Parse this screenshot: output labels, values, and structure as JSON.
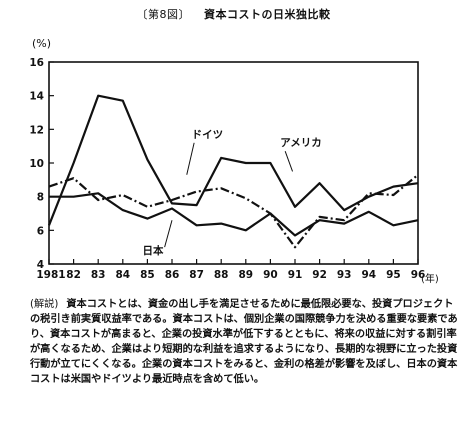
{
  "figure": {
    "label": "〔第8図〕",
    "title": "資本コストの日米独比較"
  },
  "chart_data": {
    "type": "line",
    "x": [
      1981,
      1982,
      1983,
      1984,
      1985,
      1986,
      1987,
      1988,
      1989,
      1990,
      1991,
      1992,
      1993,
      1994,
      1995,
      1996
    ],
    "x_tick_labels": [
      "1981",
      "82",
      "83",
      "84",
      "85",
      "86",
      "87",
      "88",
      "89",
      "90",
      "91",
      "92",
      "93",
      "94",
      "95",
      "96"
    ],
    "x_unit": "(年)",
    "y_unit": "(%)",
    "ylim": [
      4,
      16
    ],
    "y_ticks": [
      4,
      6,
      8,
      10,
      12,
      14,
      16
    ],
    "grid": false,
    "series": [
      {
        "name": "ドイツ",
        "style": "solid",
        "values": [
          6.3,
          10.0,
          14.0,
          13.7,
          10.2,
          7.6,
          7.5,
          10.3,
          10.0,
          10.0,
          7.4,
          8.8,
          7.2,
          8.0,
          8.6,
          8.8
        ]
      },
      {
        "name": "アメリカ",
        "style": "dashdot",
        "values": [
          8.6,
          9.1,
          7.8,
          8.1,
          7.4,
          7.8,
          8.3,
          8.5,
          7.9,
          7.0,
          5.0,
          6.8,
          6.6,
          8.2,
          8.1,
          9.3
        ]
      },
      {
        "name": "日本",
        "style": "solid",
        "values": [
          8.0,
          8.0,
          8.2,
          7.2,
          6.7,
          7.3,
          6.3,
          6.4,
          6.0,
          7.0,
          5.7,
          6.6,
          6.4,
          7.1,
          6.3,
          6.6
        ]
      }
    ]
  },
  "note": {
    "tag": "(解説)",
    "text": "資本コストとは、資金の出し手を満足させるために最低限必要な、投資プロジェクトの税引き前実質収益率である。資本コストは、個別企業の国際競争力を決める重要な要素であり、資本コストが高まると、企業の投資水準が低下するとともに、将来の収益に対する割引率が高くなるため、企業はより短期的な利益を追求するようになり、長期的な視野に立った投資行動が立てにくくなる。企業の資本コストをみると、金利の格差が影響を及ぼし、日本の資本コストは米国やドイツより最近時点を含めて低い。"
  }
}
